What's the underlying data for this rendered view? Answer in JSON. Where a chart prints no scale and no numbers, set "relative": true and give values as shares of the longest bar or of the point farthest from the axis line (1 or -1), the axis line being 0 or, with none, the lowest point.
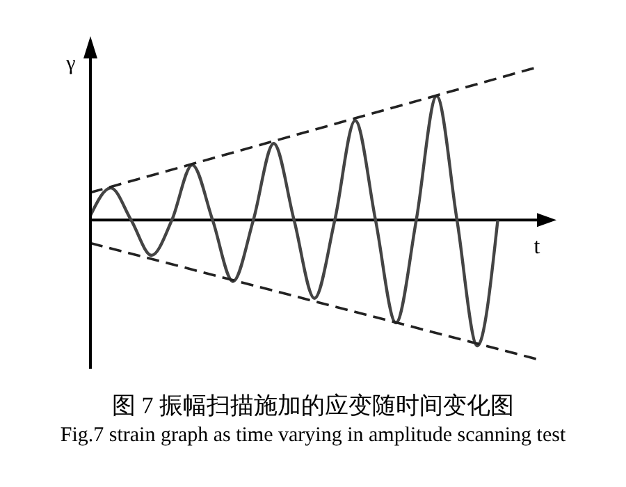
{
  "chart_data": {
    "type": "line",
    "relative": true,
    "title": "图 7 振幅扫描施加的应变随时间变化图",
    "subtitle": "Fig.7 strain graph as time varying in amplitude scanning test",
    "xlabel": "t",
    "ylabel": "γ",
    "categories": [
      null,
      null,
      null,
      null,
      null,
      null,
      null,
      null,
      null,
      null,
      null,
      null,
      null,
      null,
      null,
      null,
      null,
      null,
      null,
      null,
      null,
      null,
      null
    ],
    "series": [
      {
        "color": "#444444",
        "line_style": "solid",
        "values": [
          0.03,
          0.21,
          0,
          -0.23,
          0,
          0.36,
          0,
          -0.4,
          0,
          0.5,
          0,
          -0.51,
          0,
          0.65,
          0,
          -0.67,
          0,
          0.81,
          0,
          -0.82,
          0,
          null,
          null
        ]
      },
      {
        "color": "#222222",
        "line_style": "dashed",
        "values": [
          0.18,
          null,
          null,
          null,
          null,
          null,
          null,
          null,
          null,
          null,
          null,
          null,
          null,
          null,
          null,
          null,
          null,
          null,
          null,
          null,
          null,
          null,
          1
        ]
      },
      {
        "color": "#222222",
        "line_style": "dashed",
        "values": [
          -0.15,
          null,
          null,
          null,
          null,
          null,
          null,
          null,
          null,
          null,
          null,
          null,
          null,
          null,
          null,
          null,
          null,
          null,
          null,
          null,
          null,
          null,
          -0.91
        ]
      }
    ]
  }
}
